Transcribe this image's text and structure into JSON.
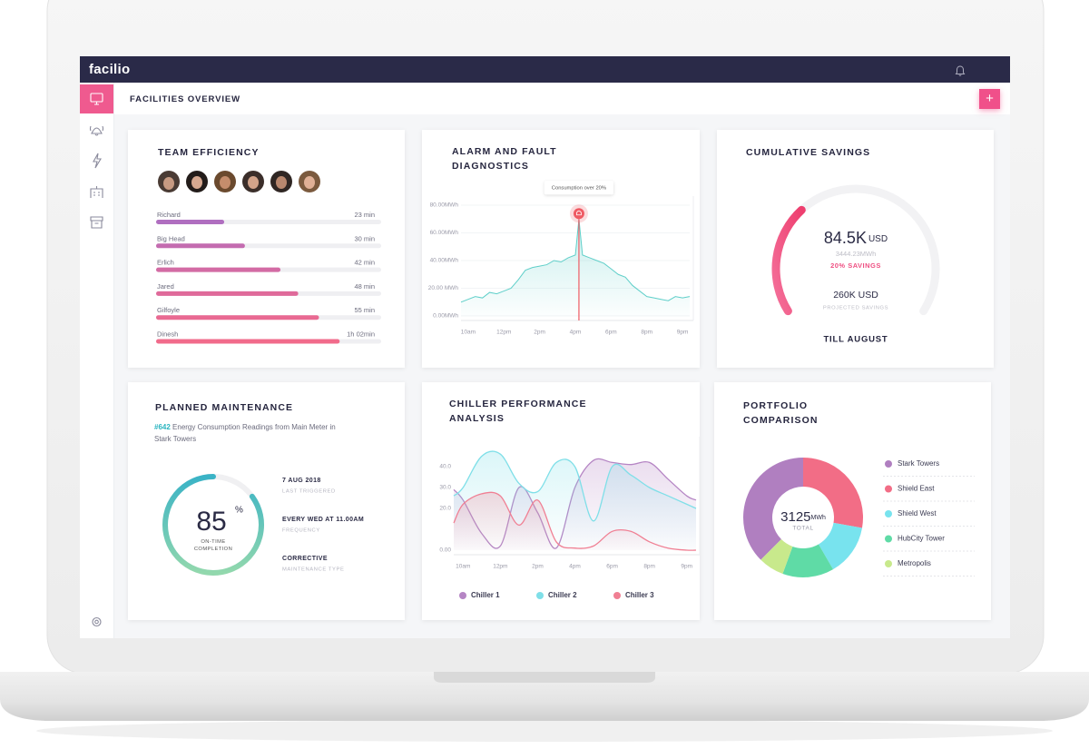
{
  "header": {
    "logo": "facilio",
    "page_title": "FACILITIES OVERVIEW",
    "add_button": "+"
  },
  "chart_data": [
    {
      "type": "bar",
      "orientation": "horizontal",
      "title": "TEAM EFFICIENCY",
      "categories": [
        "Richard",
        "Big Head",
        "Erlich",
        "Jared",
        "Gilfoyle",
        "Dinesh"
      ],
      "values": [
        23,
        30,
        42,
        48,
        55,
        62
      ],
      "value_labels": [
        "23 min",
        "30 min",
        "42 min",
        "48 min",
        "55 min",
        "1h 02min"
      ],
      "xlim": [
        0,
        76
      ],
      "colors": [
        "#b06fc0",
        "#c46cb0",
        "#d36ba4",
        "#df6a9a",
        "#e96a92",
        "#f16b8b"
      ]
    },
    {
      "type": "line",
      "title": "ALARM AND FAULT DIAGNOSTICS",
      "x": [
        -0.2,
        0,
        0.2,
        0.4,
        0.6,
        0.8,
        1,
        1.2,
        1.4,
        1.6,
        1.8,
        2,
        2.2,
        2.4,
        2.6,
        2.8,
        3,
        3.1,
        3.2,
        3.4,
        3.6,
        3.8,
        4,
        4.2,
        4.4,
        4.6,
        4.8,
        5,
        5.2,
        5.4,
        5.6,
        5.8,
        6,
        6.2
      ],
      "values": [
        10,
        12,
        14,
        13,
        17,
        16,
        18,
        20,
        26,
        33,
        35,
        36,
        37,
        40,
        39,
        42,
        44,
        70,
        44,
        42,
        40,
        38,
        34,
        30,
        28,
        22,
        18,
        14,
        13,
        12,
        11,
        14,
        13,
        14
      ],
      "color": "#5fcfc9",
      "xlim": [
        -0.2,
        6.2
      ],
      "xticks": [
        {
          "value": 0,
          "label": "10am"
        },
        {
          "value": 1,
          "label": "12pm"
        },
        {
          "value": 2,
          "label": "2pm"
        },
        {
          "value": 3,
          "label": "4pm"
        },
        {
          "value": 4,
          "label": "6pm"
        },
        {
          "value": 5,
          "label": "8pm"
        },
        {
          "value": 6,
          "label": "9pm"
        }
      ],
      "ylim": [
        0,
        80
      ],
      "yticks": [
        {
          "value": 0,
          "label": "0.00MWh"
        },
        {
          "value": 20,
          "label": "20.00 MWh"
        },
        {
          "value": 40,
          "label": "40.00MWh"
        },
        {
          "value": 60,
          "label": "60.00MWh"
        },
        {
          "value": 80,
          "label": "80.00MWh"
        }
      ],
      "grid": true,
      "annotation": "Consumption over 20%",
      "alarm_color": "#ef5a63"
    },
    {
      "type": "gauge",
      "title": "CUMULATIVE SAVINGS",
      "value": 84.5,
      "value_label": "84.5K",
      "unit": "USD",
      "subtext": "3444.23MWh",
      "savings_label": "20% SAVINGS",
      "max": 260,
      "max_label": "260K USD",
      "max_caption": "PROJECTED SAVINGS",
      "footer": "TILL AUGUST"
    },
    {
      "type": "progress",
      "title": "PLANNED MAINTENANCE",
      "id": "#642",
      "description": "Energy Consumption Readings from Main Meter in Stark Towers",
      "value": 85,
      "unit": "%",
      "max": 100,
      "caption": "ON-TIME COMPLETION",
      "details": [
        {
          "text": "7 AUG 2018",
          "label": "LAST TRIGGERED"
        },
        {
          "text": "EVERY WED AT 11.00AM",
          "label": "FREQUENCY"
        },
        {
          "text": "CORRECTIVE",
          "label": "MAINTENANCE TYPE"
        }
      ]
    },
    {
      "type": "line",
      "smooth": true,
      "title": "CHILLER PERFORMANCE ANALYSIS",
      "x": [
        -0.25,
        0,
        0.5,
        1,
        1.5,
        2,
        2.5,
        3,
        3.5,
        4,
        4.5,
        5,
        5.5,
        6,
        6.25
      ],
      "series": [
        {
          "name": "Chiller 1",
          "color": "#b585c4",
          "values": [
            29,
            24,
            8,
            2,
            30,
            18,
            1,
            30,
            43,
            42,
            41,
            42,
            34,
            26,
            24
          ]
        },
        {
          "name": "Chiller 2",
          "color": "#7fdfe8",
          "values": [
            26,
            30,
            45,
            46,
            32,
            28,
            42,
            40,
            14,
            40,
            36,
            30,
            26,
            22,
            20
          ]
        },
        {
          "name": "Chiller 3",
          "color": "#f07f93",
          "values": [
            13,
            22,
            27,
            26,
            12,
            24,
            4,
            1,
            2,
            9,
            9,
            4,
            1,
            0,
            0
          ]
        }
      ],
      "xlim": [
        -0.25,
        6.25
      ],
      "xticks": [
        {
          "value": 0,
          "label": "10am"
        },
        {
          "value": 1,
          "label": "12pm"
        },
        {
          "value": 2,
          "label": "2pm"
        },
        {
          "value": 3,
          "label": "4pm"
        },
        {
          "value": 4,
          "label": "6pm"
        },
        {
          "value": 5,
          "label": "8pm"
        },
        {
          "value": 6,
          "label": "9pm"
        }
      ],
      "ylim": [
        0,
        50
      ],
      "yticks": [
        {
          "value": 0,
          "label": "0.00"
        },
        {
          "value": 20,
          "label": "20.0"
        },
        {
          "value": 30,
          "label": "30.0"
        },
        {
          "value": 40,
          "label": "40.0"
        }
      ],
      "grid": false,
      "legend": "bottom"
    },
    {
      "type": "donut",
      "title": "PORTFOLIO COMPARISON",
      "categories": [
        "Stark Towers",
        "Shield East",
        "Shield West",
        "HubCity Tower",
        "Metropolis"
      ],
      "values": [
        1172,
        868,
        434,
        434,
        217
      ],
      "colors": [
        "#b07fc0",
        "#f26d86",
        "#78e3ee",
        "#5fdba6",
        "#c8e98c"
      ],
      "center_value": 3125,
      "center_unit": "MWh",
      "center_caption": "TOTAL"
    }
  ]
}
